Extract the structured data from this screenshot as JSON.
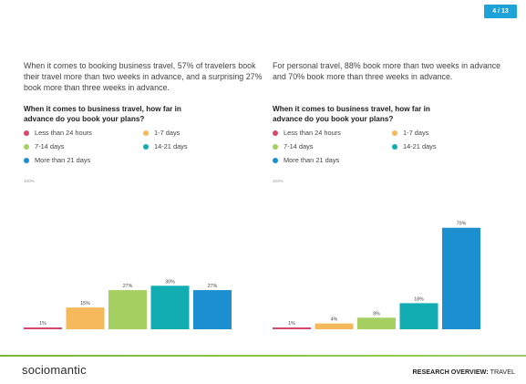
{
  "page": {
    "number": "4 / 13"
  },
  "left_panel": {
    "intro": "When it comes to booking business travel, 57% of travelers book their travel more than two weeks in advance, and a surprising 27% book more than three weeks in advance.",
    "question": "When it comes to business travel, how far in advance do you book your plans?"
  },
  "right_panel": {
    "intro": "For personal travel, 88% book more than two weeks in advance and 70% book more than three weeks in advance.",
    "question": "When it comes to business travel, how far in advance do you book your plans?"
  },
  "legend": {
    "items": [
      {
        "label": "Less than 24 hours",
        "color": "#d6486f"
      },
      {
        "label": "1-7 days",
        "color": "#f5b85a"
      },
      {
        "label": "7-14 days",
        "color": "#a5cf61"
      },
      {
        "label": "14-21 days",
        "color": "#12adb2"
      },
      {
        "label": "More than 21 days",
        "color": "#1b8fcf"
      }
    ]
  },
  "chart_data": [
    {
      "type": "bar",
      "categories": [
        "Less than 24 hours",
        "1-7 days",
        "7-14 days",
        "14-21 days",
        "More than 21 days"
      ],
      "values": [
        1,
        15,
        27,
        30,
        27
      ],
      "value_labels": [
        "1%",
        "15%",
        "27%",
        "30%",
        "27%"
      ],
      "ylim": [
        0,
        100
      ],
      "ytick_label": "100%",
      "colors": [
        "#d6486f",
        "#f5b85a",
        "#a5cf61",
        "#12adb2",
        "#1b8fcf"
      ],
      "grid": false
    },
    {
      "type": "bar",
      "categories": [
        "Less than 24 hours",
        "1-7 days",
        "7-14 days",
        "14-21 days",
        "More than 21 days"
      ],
      "values": [
        1,
        4,
        8,
        18,
        70
      ],
      "value_labels": [
        "1%",
        "4%",
        "8%",
        "18%",
        "70%"
      ],
      "ylim": [
        0,
        100
      ],
      "ytick_label": "100%",
      "colors": [
        "#d6486f",
        "#f5b85a",
        "#a5cf61",
        "#12adb2",
        "#1b8fcf"
      ],
      "grid": false
    }
  ],
  "footer": {
    "brand": "sociomantic",
    "report_bold": "RESEARCH OVERVIEW:",
    "report_topic": "TRAVEL"
  }
}
